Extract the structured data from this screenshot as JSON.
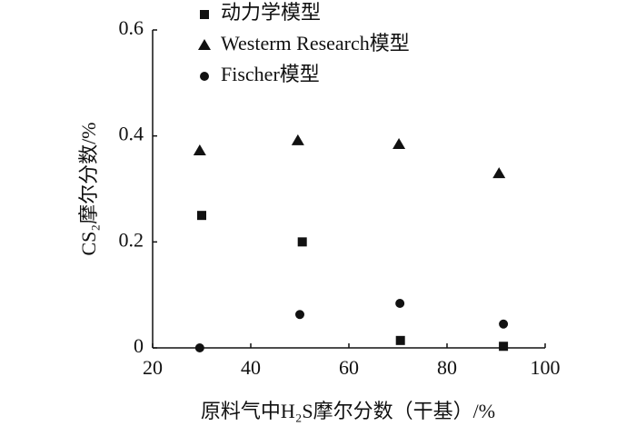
{
  "chart_data": {
    "type": "scatter",
    "x_label": "原料气中H₂S摩尔分数（干基）/%",
    "y_label": "CS₂摩尔分数/%",
    "xlim": [
      20,
      100
    ],
    "xticks": [
      20,
      40,
      60,
      80,
      100
    ],
    "ylim": [
      0,
      0.6
    ],
    "yticks": [
      0,
      0.2,
      0.4,
      0.6
    ],
    "series": [
      {
        "name": "动力学模型",
        "marker": "square",
        "color": "#111111",
        "x": [
          30,
          50.5,
          70.5,
          91.5
        ],
        "values": [
          0.25,
          0.2,
          0.014,
          0.003
        ]
      },
      {
        "name": "Westerm Research模型",
        "marker": "triangle",
        "color": "#111111",
        "x": [
          29.6,
          49.6,
          70.2,
          90.6
        ],
        "values": [
          0.372,
          0.391,
          0.384,
          0.329
        ]
      },
      {
        "name": "Fischer模型",
        "marker": "circle",
        "color": "#111111",
        "x": [
          29.6,
          50,
          70.4,
          91.5
        ],
        "values": [
          0,
          0.063,
          0.084,
          0.045
        ]
      }
    ]
  }
}
